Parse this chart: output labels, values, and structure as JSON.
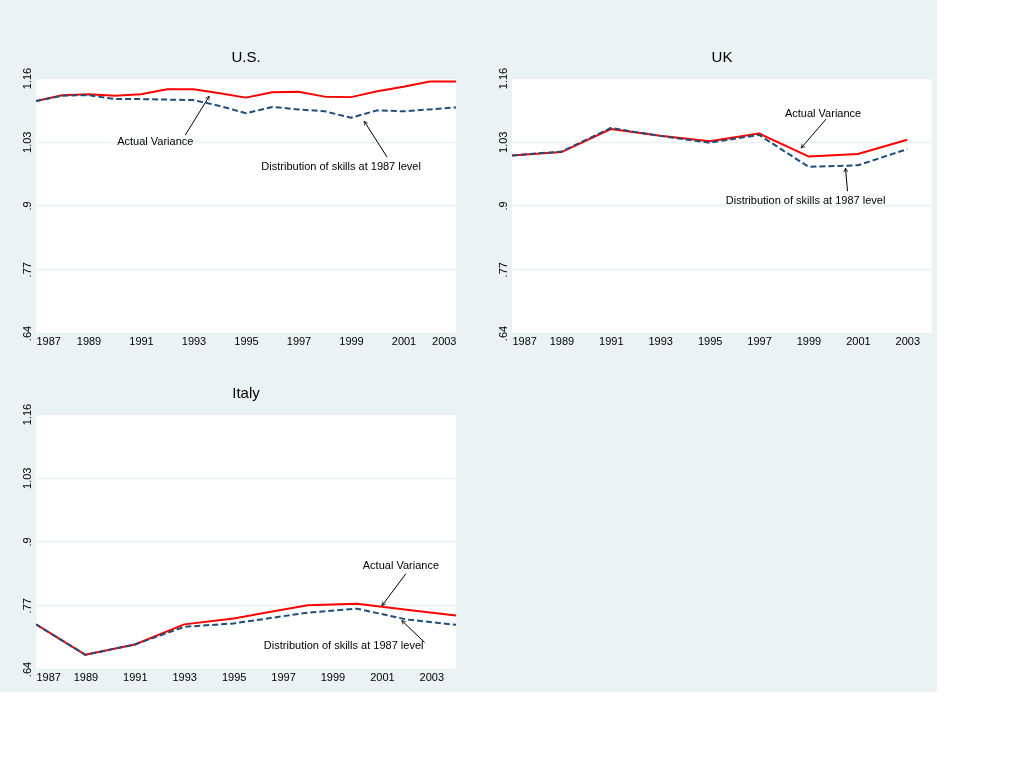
{
  "chart_data": [
    {
      "type": "line",
      "title": "U.S.",
      "x": [
        1987,
        1988,
        1989,
        1990,
        1991,
        1992,
        1993,
        1994,
        1995,
        1996,
        1997,
        1998,
        1999,
        2000,
        2001,
        2002,
        2003
      ],
      "series": [
        {
          "color": "#ff0000",
          "line_style": "solid",
          "values": [
            1.113,
            1.125,
            1.127,
            1.124,
            1.127,
            1.137,
            1.137,
            1.129,
            1.12,
            1.131,
            1.132,
            1.122,
            1.121,
            1.133,
            1.142,
            1.153,
            1.153
          ]
        },
        {
          "color": "#1f4e79",
          "line_style": "dashed",
          "values": [
            1.113,
            1.124,
            1.125,
            1.117,
            1.117,
            1.116,
            1.115,
            1.103,
            1.088,
            1.101,
            1.096,
            1.092,
            1.079,
            1.094,
            1.092,
            1.096,
            1.1
          ]
        }
      ],
      "xlim": [
        1987,
        2003
      ],
      "xticks": [
        1987,
        1989,
        1991,
        1993,
        1995,
        1997,
        1999,
        2001,
        2003
      ],
      "ylim": [
        0.64,
        1.16
      ],
      "yticks": [
        {
          "value": 0.64,
          "label": ".64"
        },
        {
          "value": 0.77,
          "label": ".77"
        },
        {
          "value": 0.9,
          "label": ".9"
        },
        {
          "value": 1.03,
          "label": "1.03"
        },
        {
          "value": 1.16,
          "label": "1.16"
        }
      ],
      "grid": "y",
      "annotations": [
        {
          "text": "Actual Variance",
          "x": 1993.6,
          "y": 1.123
        },
        {
          "text": "Distribution of skills at 1987 level",
          "x": 1999.5,
          "y": 1.072
        }
      ]
    },
    {
      "type": "line",
      "title": "UK",
      "x": [
        1987,
        1989,
        1991,
        1993,
        1995,
        1997,
        1999,
        2001,
        2003
      ],
      "series": [
        {
          "color": "#ff0000",
          "line_style": "solid",
          "values": [
            1.002,
            1.009,
            1.056,
            1.042,
            1.031,
            1.047,
            1.0,
            1.005,
            1.034
          ]
        },
        {
          "color": "#1f4e79",
          "line_style": "dashed",
          "values": [
            1.002,
            1.01,
            1.058,
            1.042,
            1.028,
            1.044,
            0.979,
            0.982,
            1.015
          ]
        }
      ],
      "xlim": [
        1987,
        2004
      ],
      "xticks": [
        1987,
        1989,
        1991,
        1993,
        1995,
        1997,
        1999,
        2001,
        2003
      ],
      "ylim": [
        0.64,
        1.16
      ],
      "yticks": [
        {
          "value": 0.64,
          "label": ".64"
        },
        {
          "value": 0.77,
          "label": ".77"
        },
        {
          "value": 0.9,
          "label": ".9"
        },
        {
          "value": 1.03,
          "label": "1.03"
        },
        {
          "value": 1.16,
          "label": "1.16"
        }
      ],
      "grid": "y",
      "annotations": [
        {
          "text": "Actual Variance",
          "x": 1998.7,
          "y": 1.017
        },
        {
          "text": "Distribution of skills at 1987 level",
          "x": 2000.5,
          "y": 0.976
        }
      ]
    },
    {
      "type": "line",
      "title": "Italy",
      "x": [
        1987,
        1989,
        1991,
        1993,
        1995,
        1998,
        2000,
        2002,
        2004
      ],
      "series": [
        {
          "color": "#ff0000",
          "line_style": "solid",
          "values": [
            0.731,
            0.669,
            0.69,
            0.731,
            0.743,
            0.77,
            0.773,
            0.761,
            0.749
          ]
        },
        {
          "color": "#1f4e79",
          "line_style": "dashed",
          "values": [
            0.731,
            0.669,
            0.69,
            0.726,
            0.733,
            0.755,
            0.763,
            0.741,
            0.73
          ]
        }
      ],
      "xlim": [
        1987,
        2004
      ],
      "xticks": [
        1987,
        1989,
        1991,
        1993,
        1995,
        1997,
        1999,
        2001,
        2003
      ],
      "ylim": [
        0.64,
        1.16
      ],
      "yticks": [
        {
          "value": 0.64,
          "label": ".64"
        },
        {
          "value": 0.77,
          "label": ".77"
        },
        {
          "value": 0.9,
          "label": ".9"
        },
        {
          "value": 1.03,
          "label": "1.03"
        },
        {
          "value": 1.16,
          "label": "1.16"
        }
      ],
      "grid": "y",
      "annotations": [
        {
          "text": "Actual Variance",
          "x": 2001.0,
          "y": 0.769
        },
        {
          "text": "Distribution of skills at 1987 level",
          "x": 2001.8,
          "y": 0.739
        }
      ]
    }
  ]
}
